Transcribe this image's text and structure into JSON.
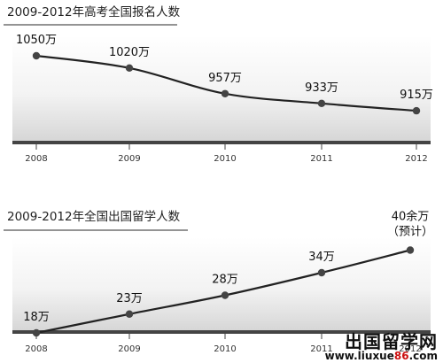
{
  "chart_data": [
    {
      "type": "line",
      "title": "2009-2012年高考全国报名人数",
      "x": [
        "2008",
        "2009",
        "2010",
        "2011",
        "2012"
      ],
      "values": [
        1050,
        1020,
        957,
        933,
        915
      ],
      "data_labels": [
        "1050万",
        "1020万",
        "957万",
        "933万",
        "915万"
      ],
      "ylim": [
        850,
        1100
      ],
      "grid": false,
      "legend": "none"
    },
    {
      "type": "line",
      "title": "2009-2012年全国出国留学人数",
      "x": [
        "2008",
        "2009",
        "2010",
        "2011",
        "2012"
      ],
      "values": [
        18,
        23,
        28,
        34,
        40
      ],
      "data_labels": [
        "18万",
        "23万",
        "28万",
        "34万",
        "40余万\n（预计）"
      ],
      "ylim": [
        10,
        50
      ],
      "grid": false,
      "legend": "none"
    }
  ],
  "watermark": {
    "line1": "出国留学网",
    "line2_prefix": "www.liuxue",
    "line2_accent": "86",
    "line2_suffix": ".com"
  },
  "colors": {
    "line": "#222222",
    "axis": "#444444",
    "panel_gradient_top": "#ffffff",
    "panel_gradient_bottom": "#d9d9d9",
    "watermark_accent": "#cc1111"
  }
}
